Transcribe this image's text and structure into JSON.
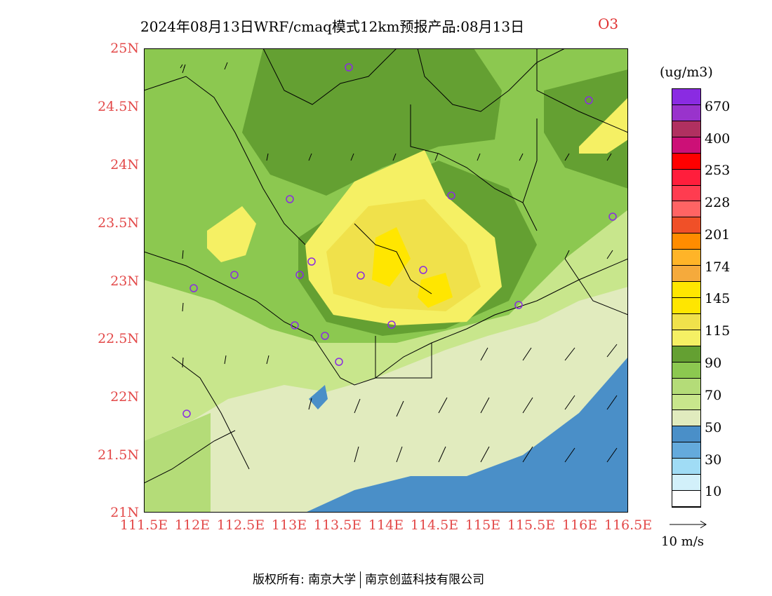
{
  "title": {
    "main": "2024年08月13日WRF/cmaq模式12km预报产品:08月13日",
    "species": "O3"
  },
  "axes": {
    "lat_labels": [
      "25N",
      "24.5N",
      "24N",
      "23.5N",
      "23N",
      "22.5N",
      "22N",
      "21.5N",
      "21N"
    ],
    "lat_values": [
      25,
      24.5,
      24,
      23.5,
      23,
      22.5,
      22,
      21.5,
      21
    ],
    "lon_labels": [
      "111.5E",
      "112E",
      "112.5E",
      "113E",
      "113.5E",
      "114E",
      "114.5E",
      "115E",
      "115.5E",
      "116E",
      "116.5E"
    ],
    "lon_values": [
      111.5,
      112,
      112.5,
      113,
      113.5,
      114,
      114.5,
      115,
      115.5,
      116,
      116.5
    ],
    "lat_range": [
      21,
      25
    ],
    "lon_range": [
      111.5,
      116.5
    ]
  },
  "colorbar": {
    "unit": "(ug/m3)",
    "labels": [
      "670",
      "400",
      "253",
      "228",
      "201",
      "174",
      "145",
      "115",
      "90",
      "70",
      "50",
      "30",
      "10"
    ],
    "colors": [
      "#8a2be2",
      "#9933cc",
      "#b03060",
      "#cc1077",
      "#ff0000",
      "#ff1e3c",
      "#ff3c50",
      "#ff6464",
      "#f05028",
      "#ff8c00",
      "#ffb428",
      "#f5aa3c",
      "#ffe600",
      "#ffe600",
      "#f0e14b",
      "#f5f064",
      "#64a032",
      "#8cc850",
      "#b4dc78",
      "#c8e68c",
      "#e1ebbe",
      "#4a8fc8",
      "#64aadc",
      "#a0dcf5",
      "#d2f0fa",
      "#ffffff"
    ]
  },
  "wind": {
    "reference_label": "10 m/s"
  },
  "footer": {
    "copyright": "版权所有: 南京大学",
    "company": "南京创蓝科技有限公司"
  },
  "map_colors": {
    "sea_blue": "#4a8fc8",
    "band_50": "#e1ebbe",
    "band_70": "#c8e68c",
    "band_90": "#8cc850",
    "band_100": "#64a032",
    "band_115": "#f5f064",
    "band_130": "#f0e14b",
    "band_145": "#ffe600",
    "station_color": "#8a2be2",
    "axis_label_color": "#e34a4a"
  }
}
